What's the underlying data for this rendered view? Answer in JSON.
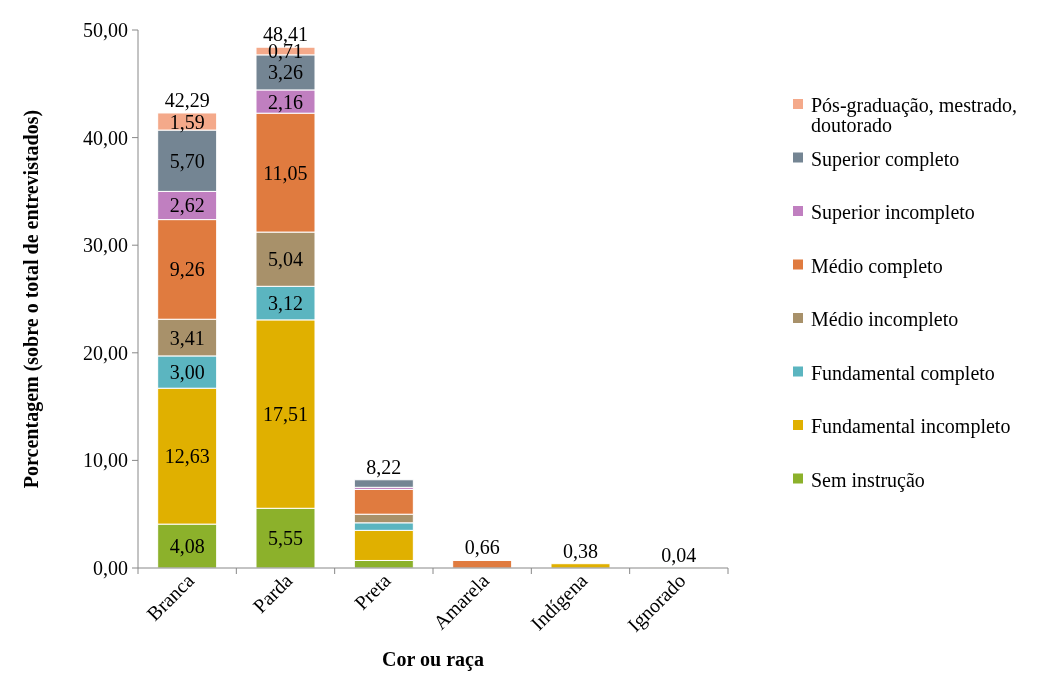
{
  "chart_data": {
    "type": "bar",
    "stacked": true,
    "xlabel": "Cor ou raça",
    "ylabel": "Porcentagem (sobre o total de entrevistados)",
    "categories": [
      "Branca",
      "Parda",
      "Preta",
      "Amarela",
      "Indígena",
      "Ignorado"
    ],
    "ylim": [
      0,
      50
    ],
    "yticks": [
      {
        "value": 0,
        "label": "0,00"
      },
      {
        "value": 10,
        "label": "10,00"
      },
      {
        "value": 20,
        "label": "20,00"
      },
      {
        "value": 30,
        "label": "30,00"
      },
      {
        "value": 40,
        "label": "40,00"
      },
      {
        "value": 50,
        "label": "50,00"
      }
    ],
    "grid": false,
    "legend": "right",
    "series": [
      {
        "name": "Sem instrução",
        "color": "#8cb12b",
        "values": [
          4.08,
          5.55,
          0.7,
          null,
          null,
          null
        ],
        "value_labels": [
          "4,08",
          "5,55",
          null,
          null,
          null,
          null
        ]
      },
      {
        "name": "Fundamental incompleto",
        "color": "#e0b000",
        "values": [
          12.63,
          17.51,
          2.8,
          null,
          0.4,
          0.04
        ],
        "value_labels": [
          "12,63",
          "17,51",
          null,
          null,
          null,
          null
        ]
      },
      {
        "name": "Fundamental completo",
        "color": "#5bb5c0",
        "values": [
          3.0,
          3.12,
          0.7,
          null,
          null,
          null
        ],
        "value_labels": [
          "3,00",
          "3,12",
          null,
          null,
          null,
          null
        ]
      },
      {
        "name": "Médio incompleto",
        "color": "#a8916a",
        "values": [
          3.41,
          5.04,
          0.8,
          null,
          null,
          null
        ],
        "value_labels": [
          "3,41",
          "5,04",
          null,
          null,
          null,
          null
        ]
      },
      {
        "name": "Médio completo",
        "color": "#e07b3f",
        "values": [
          9.26,
          11.05,
          2.3,
          0.7,
          null,
          null
        ],
        "value_labels": [
          "9,26",
          "11,05",
          null,
          null,
          null,
          null
        ]
      },
      {
        "name": "Superior incompleto",
        "color": "#c07fc0",
        "values": [
          2.62,
          2.16,
          0.2,
          null,
          null,
          null
        ],
        "value_labels": [
          "2,62",
          "2,16",
          null,
          null,
          null,
          null
        ]
      },
      {
        "name": "Superior completo",
        "color": "#748593",
        "values": [
          5.7,
          3.26,
          0.7,
          null,
          null,
          null
        ],
        "value_labels": [
          "5,70",
          "3,26",
          null,
          null,
          null,
          null
        ]
      },
      {
        "name": "Pós-graduação, mestrado, doutorado",
        "color": "#f4a98a",
        "values": [
          1.59,
          0.71,
          null,
          null,
          null,
          null
        ],
        "value_labels": [
          "1,59",
          "0,71",
          null,
          null,
          null,
          null
        ]
      }
    ],
    "totals": [
      "42,29",
      "48,41",
      "8,22",
      "0,66",
      "0,38",
      "0,04"
    ]
  }
}
